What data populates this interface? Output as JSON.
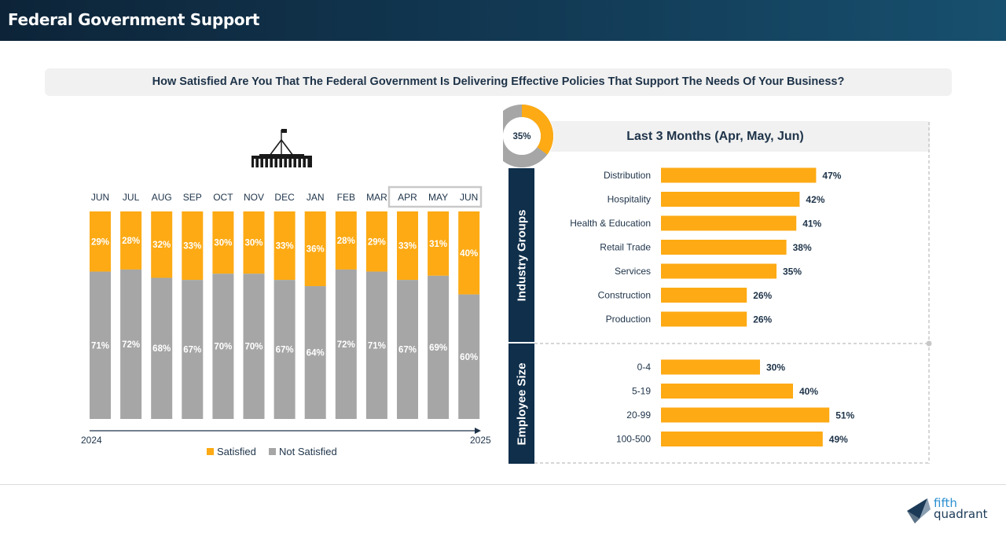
{
  "header": {
    "title": "Federal Government Support"
  },
  "question": "How Satisfied Are You That The Federal Government Is Delivering Effective Policies That Support The Needs Of Your Business?",
  "right_panel": {
    "title": "Last 3 Months (Apr, May, Jun)",
    "donut_label": "35%",
    "donut_value": 35,
    "industry_label": "Industry Groups",
    "employee_label": "Employee Size"
  },
  "logo": {
    "line1": "fifth",
    "line2": "quadrant"
  },
  "colors": {
    "satisfied": "#fdaa14",
    "not_satisfied": "#a6a6a6",
    "navy": "#0f2f4b",
    "text": "#1e3349"
  },
  "chart_data": [
    {
      "type": "bar",
      "stacked": true,
      "categories": [
        "JUN",
        "JUL",
        "AUG",
        "SEP",
        "OCT",
        "NOV",
        "DEC",
        "JAN",
        "FEB",
        "MAR",
        "APR",
        "MAY",
        "JUN"
      ],
      "series": [
        {
          "name": "Satisfied",
          "values": [
            29,
            28,
            32,
            33,
            30,
            30,
            33,
            36,
            28,
            29,
            33,
            31,
            40
          ],
          "color": "#fdaa14"
        },
        {
          "name": "Not Satisfied",
          "values": [
            71,
            72,
            68,
            67,
            70,
            70,
            67,
            64,
            72,
            71,
            67,
            69,
            60
          ],
          "color": "#a6a6a6"
        }
      ],
      "value_labels": {
        "satisfied": [
          "29%",
          "28%",
          "32%",
          "33%",
          "30%",
          "30%",
          "33%",
          "36%",
          "28%",
          "29%",
          "33%",
          "31%",
          "40%"
        ],
        "not_satisfied": [
          "71%",
          "72%",
          "68%",
          "67%",
          "70%",
          "70%",
          "67%",
          "64%",
          "72%",
          "71%",
          "67%",
          "69%",
          "60%"
        ]
      },
      "year_start": "2024",
      "year_end": "2025",
      "highlighted": [
        "APR",
        "MAY",
        "JUN"
      ],
      "ylim": [
        0,
        100
      ],
      "legend": "bottom"
    },
    {
      "type": "bar",
      "orientation": "horizontal",
      "group": "Industry Groups",
      "categories": [
        "Distribution",
        "Hospitality",
        "Health & Education",
        "Retail Trade",
        "Services",
        "Construction",
        "Production"
      ],
      "values": [
        47,
        42,
        41,
        38,
        35,
        26,
        26
      ],
      "value_labels": [
        "47%",
        "42%",
        "41%",
        "38%",
        "35%",
        "26%",
        "26%"
      ],
      "color": "#fdaa14"
    },
    {
      "type": "bar",
      "orientation": "horizontal",
      "group": "Employee Size",
      "categories": [
        "0-4",
        "5-19",
        "20-99",
        "100-500"
      ],
      "values": [
        30,
        40,
        51,
        49
      ],
      "value_labels": [
        "30%",
        "40%",
        "51%",
        "49%"
      ],
      "color": "#fdaa14"
    }
  ]
}
